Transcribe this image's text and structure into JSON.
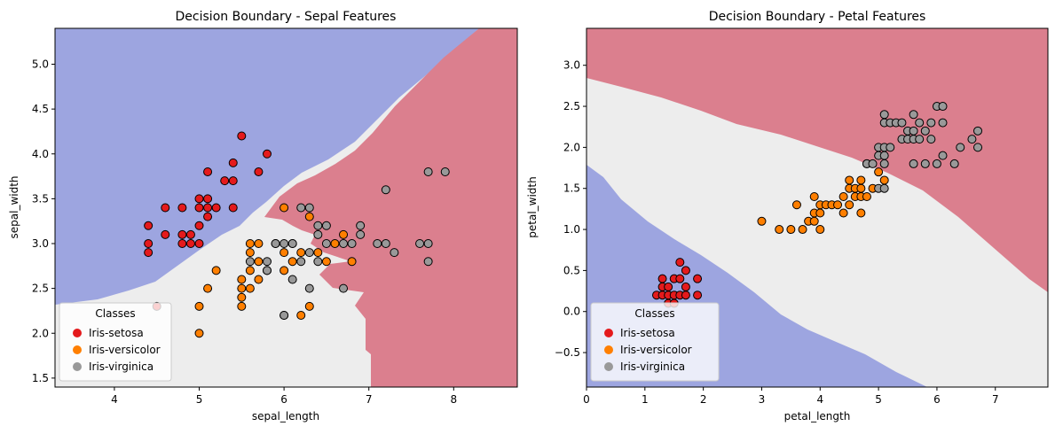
{
  "classes_title": "Classes",
  "class_colors": {
    "Iris-setosa": "#e41a1c",
    "Iris-versicolor": "#ff7f00",
    "Iris-virginica": "#999999"
  },
  "region_colors": {
    "Iris-setosa": "#9da5e0",
    "Iris-versicolor": "#ededed",
    "Iris-virginica": "#db7f8e"
  },
  "chart_data": [
    {
      "type": "scatter",
      "title": "Decision Boundary - Sepal Features",
      "xlabel": "sepal_length",
      "ylabel": "sepal_width",
      "xlim": [
        3.3,
        8.75
      ],
      "ylim": [
        1.4,
        5.4
      ],
      "xticks": [
        "4",
        "5",
        "6",
        "7",
        "8"
      ],
      "yticks": [
        "1.5",
        "2.0",
        "2.5",
        "3.0",
        "3.5",
        "4.0",
        "4.5",
        "5.0"
      ],
      "legend": {
        "title": "Classes",
        "position": "lower-left",
        "entries": [
          "Iris-setosa",
          "Iris-versicolor",
          "Iris-virginica"
        ]
      },
      "series": [
        {
          "name": "Iris-setosa",
          "points": [
            [
              4.4,
              2.9
            ],
            [
              4.4,
              3.0
            ],
            [
              4.4,
              3.2
            ],
            [
              4.5,
              2.3
            ],
            [
              4.6,
              3.1
            ],
            [
              4.6,
              3.4
            ],
            [
              4.8,
              3.0
            ],
            [
              4.8,
              3.1
            ],
            [
              4.8,
              3.4
            ],
            [
              4.9,
              3.0
            ],
            [
              4.9,
              3.1
            ],
            [
              5.0,
              3.0
            ],
            [
              5.0,
              3.2
            ],
            [
              5.0,
              3.4
            ],
            [
              5.0,
              3.5
            ],
            [
              5.1,
              3.3
            ],
            [
              5.1,
              3.4
            ],
            [
              5.1,
              3.5
            ],
            [
              5.1,
              3.8
            ],
            [
              5.2,
              3.4
            ],
            [
              5.3,
              3.7
            ],
            [
              5.4,
              3.4
            ],
            [
              5.4,
              3.7
            ],
            [
              5.4,
              3.9
            ],
            [
              5.5,
              4.2
            ],
            [
              5.7,
              3.8
            ],
            [
              5.8,
              4.0
            ]
          ]
        },
        {
          "name": "Iris-versicolor",
          "points": [
            [
              5.0,
              2.0
            ],
            [
              5.0,
              2.3
            ],
            [
              5.1,
              2.5
            ],
            [
              5.2,
              2.7
            ],
            [
              5.5,
              2.3
            ],
            [
              5.5,
              2.4
            ],
            [
              5.5,
              2.5
            ],
            [
              5.5,
              2.6
            ],
            [
              5.6,
              2.5
            ],
            [
              5.6,
              2.7
            ],
            [
              5.6,
              2.9
            ],
            [
              5.6,
              3.0
            ],
            [
              5.7,
              2.6
            ],
            [
              5.7,
              2.8
            ],
            [
              5.7,
              3.0
            ],
            [
              5.8,
              2.7
            ],
            [
              5.9,
              3.0
            ],
            [
              6.0,
              2.2
            ],
            [
              6.0,
              2.7
            ],
            [
              6.0,
              2.9
            ],
            [
              6.0,
              3.4
            ],
            [
              6.1,
              2.8
            ],
            [
              6.1,
              3.0
            ],
            [
              6.2,
              2.2
            ],
            [
              6.2,
              2.9
            ],
            [
              6.3,
              2.3
            ],
            [
              6.3,
              3.3
            ],
            [
              6.4,
              2.9
            ],
            [
              6.5,
              2.8
            ],
            [
              6.6,
              3.0
            ],
            [
              6.7,
              3.1
            ],
            [
              6.8,
              2.8
            ]
          ]
        },
        {
          "name": "Iris-virginica",
          "points": [
            [
              5.6,
              2.8
            ],
            [
              5.8,
              2.7
            ],
            [
              5.8,
              2.8
            ],
            [
              5.9,
              3.0
            ],
            [
              6.0,
              2.2
            ],
            [
              6.0,
              3.0
            ],
            [
              6.1,
              2.6
            ],
            [
              6.1,
              3.0
            ],
            [
              6.2,
              2.8
            ],
            [
              6.2,
              3.4
            ],
            [
              6.3,
              2.5
            ],
            [
              6.3,
              2.9
            ],
            [
              6.3,
              3.4
            ],
            [
              6.4,
              2.8
            ],
            [
              6.4,
              3.1
            ],
            [
              6.4,
              3.2
            ],
            [
              6.5,
              3.0
            ],
            [
              6.5,
              3.2
            ],
            [
              6.7,
              2.5
            ],
            [
              6.7,
              3.0
            ],
            [
              6.8,
              3.0
            ],
            [
              6.9,
              3.1
            ],
            [
              6.9,
              3.2
            ],
            [
              7.1,
              3.0
            ],
            [
              7.2,
              3.0
            ],
            [
              7.2,
              3.6
            ],
            [
              7.3,
              2.9
            ],
            [
              7.6,
              3.0
            ],
            [
              7.7,
              2.8
            ],
            [
              7.7,
              3.0
            ],
            [
              7.7,
              3.8
            ],
            [
              7.9,
              3.8
            ]
          ]
        }
      ]
    },
    {
      "type": "scatter",
      "title": "Decision Boundary - Petal Features",
      "xlabel": "petal_length",
      "ylabel": "petal_width",
      "xlim": [
        0.0,
        7.9
      ],
      "ylim": [
        -0.92,
        3.45
      ],
      "xticks": [
        "0",
        "1",
        "2",
        "3",
        "4",
        "5",
        "6",
        "7"
      ],
      "yticks": [
        "−0.5",
        "0.0",
        "0.5",
        "1.0",
        "1.5",
        "2.0",
        "2.5",
        "3.0"
      ],
      "legend": {
        "title": "Classes",
        "position": "lower-left",
        "entries": [
          "Iris-setosa",
          "Iris-versicolor",
          "Iris-virginica"
        ]
      },
      "series": [
        {
          "name": "Iris-setosa",
          "points": [
            [
              1.2,
              0.2
            ],
            [
              1.3,
              0.2
            ],
            [
              1.3,
              0.3
            ],
            [
              1.3,
              0.4
            ],
            [
              1.4,
              0.1
            ],
            [
              1.4,
              0.2
            ],
            [
              1.4,
              0.3
            ],
            [
              1.5,
              0.1
            ],
            [
              1.5,
              0.2
            ],
            [
              1.5,
              0.4
            ],
            [
              1.6,
              0.2
            ],
            [
              1.6,
              0.4
            ],
            [
              1.6,
              0.6
            ],
            [
              1.7,
              0.2
            ],
            [
              1.7,
              0.3
            ],
            [
              1.7,
              0.5
            ],
            [
              1.9,
              0.2
            ],
            [
              1.9,
              0.4
            ]
          ]
        },
        {
          "name": "Iris-versicolor",
          "points": [
            [
              3.0,
              1.1
            ],
            [
              3.3,
              1.0
            ],
            [
              3.5,
              1.0
            ],
            [
              3.6,
              1.3
            ],
            [
              3.7,
              1.0
            ],
            [
              3.8,
              1.1
            ],
            [
              3.9,
              1.1
            ],
            [
              3.9,
              1.2
            ],
            [
              3.9,
              1.4
            ],
            [
              4.0,
              1.0
            ],
            [
              4.0,
              1.2
            ],
            [
              4.0,
              1.3
            ],
            [
              4.1,
              1.3
            ],
            [
              4.2,
              1.3
            ],
            [
              4.3,
              1.3
            ],
            [
              4.4,
              1.2
            ],
            [
              4.4,
              1.4
            ],
            [
              4.5,
              1.3
            ],
            [
              4.5,
              1.5
            ],
            [
              4.5,
              1.6
            ],
            [
              4.6,
              1.4
            ],
            [
              4.6,
              1.5
            ],
            [
              4.7,
              1.2
            ],
            [
              4.7,
              1.4
            ],
            [
              4.7,
              1.5
            ],
            [
              4.7,
              1.6
            ],
            [
              4.8,
              1.4
            ],
            [
              4.8,
              1.8
            ],
            [
              4.9,
              1.5
            ],
            [
              5.0,
              1.7
            ],
            [
              5.1,
              1.6
            ]
          ]
        },
        {
          "name": "Iris-virginica",
          "points": [
            [
              4.8,
              1.8
            ],
            [
              4.9,
              1.8
            ],
            [
              5.0,
              1.5
            ],
            [
              5.0,
              1.9
            ],
            [
              5.0,
              2.0
            ],
            [
              5.1,
              1.5
            ],
            [
              5.1,
              1.8
            ],
            [
              5.1,
              1.9
            ],
            [
              5.1,
              2.0
            ],
            [
              5.1,
              2.3
            ],
            [
              5.1,
              2.4
            ],
            [
              5.2,
              2.0
            ],
            [
              5.2,
              2.3
            ],
            [
              5.3,
              2.3
            ],
            [
              5.4,
              2.1
            ],
            [
              5.4,
              2.3
            ],
            [
              5.5,
              2.1
            ],
            [
              5.5,
              2.2
            ],
            [
              5.6,
              1.8
            ],
            [
              5.6,
              2.1
            ],
            [
              5.6,
              2.2
            ],
            [
              5.6,
              2.4
            ],
            [
              5.7,
              2.1
            ],
            [
              5.7,
              2.3
            ],
            [
              5.8,
              1.8
            ],
            [
              5.8,
              2.2
            ],
            [
              5.9,
              2.1
            ],
            [
              5.9,
              2.3
            ],
            [
              6.0,
              1.8
            ],
            [
              6.0,
              2.5
            ],
            [
              6.1,
              2.3
            ],
            [
              6.1,
              2.5
            ],
            [
              6.1,
              1.9
            ],
            [
              6.3,
              1.8
            ],
            [
              6.4,
              2.0
            ],
            [
              6.6,
              2.1
            ],
            [
              6.7,
              2.0
            ],
            [
              6.7,
              2.2
            ]
          ]
        }
      ]
    }
  ]
}
